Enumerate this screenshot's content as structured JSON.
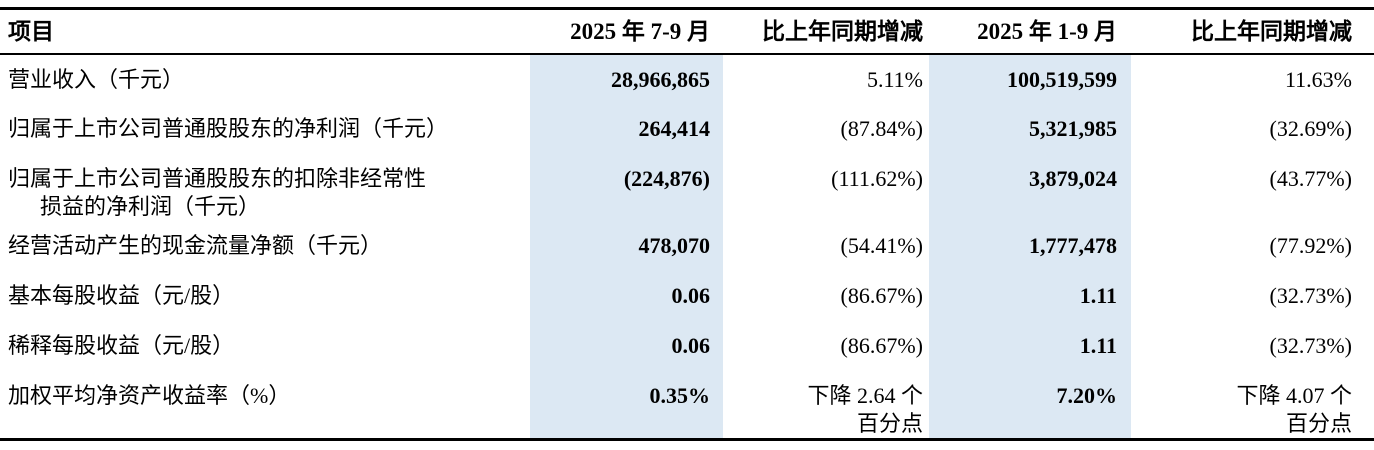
{
  "table": {
    "highlight_color": "#dce8f3",
    "headers": {
      "item": "项目",
      "q3_period": "2025 年 7-9 月",
      "q3_change": "比上年同期增减",
      "ytd_period": "2025 年 1-9 月",
      "ytd_change": "比上年同期增减"
    },
    "rows": [
      {
        "label_line1": "营业收入（千元）",
        "q3_value": "28,966,865",
        "q3_change_line1": "5.11%",
        "ytd_value": "100,519,599",
        "ytd_change_line1": "11.63%"
      },
      {
        "label_line1": "归属于上市公司普通股股东的净利润（千元）",
        "q3_value": "264,414",
        "q3_change_line1": "(87.84%)",
        "ytd_value": "5,321,985",
        "ytd_change_line1": "(32.69%)"
      },
      {
        "label_line1": "归属于上市公司普通股股东的扣除非经常性",
        "label_line2": "损益的净利润（千元）",
        "q3_value": "(224,876)",
        "q3_change_line1": "(111.62%)",
        "ytd_value": "3,879,024",
        "ytd_change_line1": "(43.77%)"
      },
      {
        "label_line1": "经营活动产生的现金流量净额（千元）",
        "q3_value": "478,070",
        "q3_change_line1": "(54.41%)",
        "ytd_value": "1,777,478",
        "ytd_change_line1": "(77.92%)"
      },
      {
        "label_line1": "基本每股收益（元/股）",
        "q3_value": "0.06",
        "q3_change_line1": "(86.67%)",
        "ytd_value": "1.11",
        "ytd_change_line1": "(32.73%)"
      },
      {
        "label_line1": "稀释每股收益（元/股）",
        "q3_value": "0.06",
        "q3_change_line1": "(86.67%)",
        "ytd_value": "1.11",
        "ytd_change_line1": "(32.73%)"
      },
      {
        "label_line1": "加权平均净资产收益率（%）",
        "q3_value": "0.35%",
        "q3_change_line1": "下降 2.64 个",
        "q3_change_line2": "百分点",
        "ytd_value": "7.20%",
        "ytd_change_line1": "下降 4.07 个",
        "ytd_change_line2": "百分点"
      }
    ]
  }
}
